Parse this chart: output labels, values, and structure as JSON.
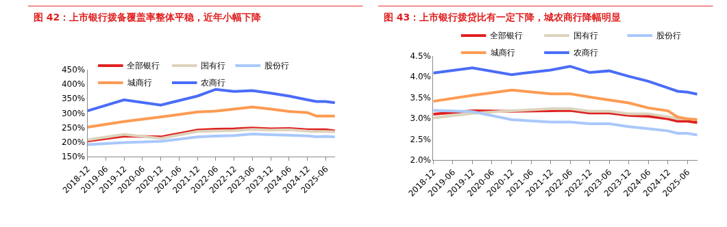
{
  "chart_data": [
    {
      "type": "line",
      "title": "图 42：上市银行拨备覆盖率整体平稳，近年小幅下降",
      "x": [
        "2018-12",
        "2019-12",
        "2020-12",
        "2021-12",
        "2022-06",
        "2022-12",
        "2023-06",
        "2023-12",
        "2024-06",
        "2024-12",
        "2025-03",
        "2025-06",
        "2025-09"
      ],
      "series": [
        {
          "name": "全部银行",
          "color": "#e02020",
          "values": [
            204,
            221,
            218,
            242,
            245,
            246,
            249,
            246,
            247,
            243,
            243,
            243,
            239
          ]
        },
        {
          "name": "国有行",
          "color": "#ddd3bd",
          "values": [
            208,
            227,
            213,
            237,
            239,
            240,
            244,
            242,
            243,
            238,
            237,
            237,
            236
          ]
        },
        {
          "name": "股份行",
          "color": "#a9c8fb",
          "values": [
            192,
            199,
            203,
            218,
            221,
            223,
            228,
            226,
            224,
            222,
            219,
            220,
            218
          ]
        },
        {
          "name": "城商行",
          "color": "#fd9b52",
          "values": [
            252,
            271,
            287,
            304,
            307,
            314,
            321,
            314,
            306,
            302,
            290,
            290,
            290
          ]
        },
        {
          "name": "农商行",
          "color": "#4a6cf7",
          "values": [
            308,
            346,
            328,
            359,
            382,
            375,
            378,
            369,
            359,
            346,
            340,
            340,
            336
          ]
        }
      ],
      "xlim": [
        "2018-12",
        "2025-09"
      ],
      "xticks": [
        "2018-12",
        "2019-06",
        "2019-12",
        "2020-06",
        "2020-12",
        "2021-06",
        "2021-12",
        "2022-06",
        "2022-12",
        "2023-06",
        "2023-12",
        "2024-06",
        "2024-12",
        "2025-06"
      ],
      "ylim": [
        150,
        450
      ],
      "yticks": [
        {
          "value": 150,
          "label": "150%"
        },
        {
          "value": 200,
          "label": "200%"
        },
        {
          "value": 250,
          "label": "250%"
        },
        {
          "value": 300,
          "label": "300%"
        },
        {
          "value": 350,
          "label": "350%"
        },
        {
          "value": 400,
          "label": "400%"
        },
        {
          "value": 450,
          "label": "450%"
        }
      ],
      "legend": "top",
      "marker": "none",
      "line_style": "solid"
    },
    {
      "type": "line",
      "title": "图 43：上市银行拨贷比有一定下降，城农商行降幅明显",
      "x": [
        "2018-12",
        "2019-12",
        "2020-12",
        "2021-12",
        "2022-06",
        "2022-12",
        "2023-06",
        "2023-12",
        "2024-06",
        "2024-12",
        "2025-03",
        "2025-06",
        "2025-09"
      ],
      "series": [
        {
          "name": "全部银行",
          "color": "#e02020",
          "values": [
            3.1,
            3.18,
            3.17,
            3.18,
            3.19,
            3.13,
            3.13,
            3.07,
            3.05,
            2.99,
            2.93,
            2.93,
            2.9
          ]
        },
        {
          "name": "国有行",
          "color": "#ddd3bd",
          "values": [
            3.01,
            3.12,
            3.18,
            3.23,
            3.23,
            3.17,
            3.17,
            3.11,
            3.11,
            3.04,
            2.99,
            2.99,
            2.97
          ]
        },
        {
          "name": "股份行",
          "color": "#a9c8fb",
          "values": [
            3.19,
            3.16,
            2.97,
            2.91,
            2.91,
            2.87,
            2.87,
            2.8,
            2.75,
            2.7,
            2.64,
            2.64,
            2.6
          ]
        },
        {
          "name": "城商行",
          "color": "#fd9b52",
          "values": [
            3.41,
            3.55,
            3.68,
            3.59,
            3.59,
            3.51,
            3.44,
            3.37,
            3.25,
            3.18,
            3.03,
            2.99,
            2.97
          ]
        },
        {
          "name": "农商行",
          "color": "#4a6cf7",
          "values": [
            4.09,
            4.21,
            4.05,
            4.16,
            4.25,
            4.1,
            4.14,
            4.01,
            3.89,
            3.73,
            3.65,
            3.63,
            3.58
          ]
        }
      ],
      "xlim": [
        "2018-12",
        "2025-09"
      ],
      "xticks": [
        "2018-12",
        "2019-06",
        "2019-12",
        "2020-06",
        "2020-12",
        "2021-06",
        "2021-12",
        "2022-06",
        "2022-12",
        "2023-06",
        "2023-12",
        "2024-06",
        "2024-12",
        "2025-06"
      ],
      "ylim": [
        2.0,
        4.5
      ],
      "yticks": [
        {
          "value": 2.0,
          "label": "2.0%"
        },
        {
          "value": 2.5,
          "label": "2.5%"
        },
        {
          "value": 3.0,
          "label": "3.0%"
        },
        {
          "value": 3.5,
          "label": "3.5%"
        },
        {
          "value": 4.0,
          "label": "4.0%"
        },
        {
          "value": 4.5,
          "label": "4.5%"
        }
      ],
      "legend": "top",
      "marker": "none",
      "line_style": "solid"
    }
  ]
}
